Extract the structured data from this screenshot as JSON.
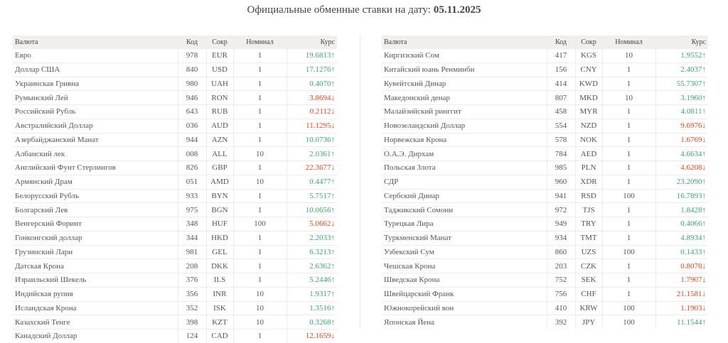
{
  "title": {
    "text": "Официальные обменные ставки на дату:",
    "date": "05.11.2025"
  },
  "tables": [
    {
      "header": [
        "Валюта",
        "Код",
        "Сокр",
        "Номинал",
        "Курс"
      ],
      "rows": [
        [
          "Евро",
          "978",
          "EUR",
          "1",
          "19.6813↑"
        ],
        [
          "Доллар США",
          "840",
          "USD",
          "1",
          "17.1276↑"
        ],
        [
          "Украинская Гривна",
          "980",
          "UAH",
          "1",
          "0.4070↑"
        ],
        [
          "Румынский Лей",
          "946",
          "RON",
          "1",
          "3.8694↓"
        ],
        [
          "Российский Рубль",
          "643",
          "RUB",
          "1",
          "0.2112↓"
        ],
        [
          "Австралийский Доллар",
          "036",
          "AUD",
          "1",
          "11.1295↓"
        ],
        [
          "Азербайджанский Манат",
          "944",
          "AZN",
          "1",
          "10.0736↑"
        ],
        [
          "Албанский лек",
          "008",
          "ALL",
          "10",
          "2.0361↑"
        ],
        [
          "Английский Фунт Стерлингов",
          "826",
          "GBP",
          "1",
          "22.3677↓"
        ],
        [
          "Армянский Драм",
          "051",
          "AMD",
          "10",
          "0.4477↑"
        ],
        [
          "Белорусский Рубль",
          "933",
          "BYN",
          "1",
          "5.7517↑"
        ],
        [
          "Болгарский Лев",
          "975",
          "BGN",
          "1",
          "10.0656↑"
        ],
        [
          "Венгерский Форинт",
          "348",
          "HUF",
          "100",
          "5.0662↓"
        ],
        [
          "Гонконгский доллар",
          "344",
          "HKD",
          "1",
          "2.2033↑"
        ],
        [
          "Грузинский Лари",
          "981",
          "GEL",
          "1",
          "6.3213↑"
        ],
        [
          "Датская Крона",
          "208",
          "DKK",
          "1",
          "2.6362↑"
        ],
        [
          "Израильский Шекель",
          "376",
          "ILS",
          "1",
          "5.2446↑"
        ],
        [
          "Индийская рупия",
          "356",
          "INR",
          "10",
          "1.9317↑"
        ],
        [
          "Исландская Крона",
          "352",
          "ISK",
          "10",
          "1.3516↑"
        ],
        [
          "Казахский Тенге",
          "398",
          "KZT",
          "10",
          "0.3268↑"
        ],
        [
          "Канадский Доллар",
          "124",
          "CAD",
          "1",
          "12.1659↓"
        ]
      ]
    },
    {
      "header": [
        "Валюта",
        "Код",
        "Сокр",
        "Номинал",
        "Курс"
      ],
      "rows": [
        [
          "Киргизский Сом",
          "417",
          "KGS",
          "10",
          "1.9552↑"
        ],
        [
          "Китайский юань Ренминби",
          "156",
          "CNY",
          "1",
          "2.4037↑"
        ],
        [
          "Кувейтский Динар",
          "414",
          "KWD",
          "1",
          "55.7307↑"
        ],
        [
          "Македонский денар",
          "807",
          "MKD",
          "10",
          "3.1960↑"
        ],
        [
          "Малайзийский ринггит",
          "458",
          "MYR",
          "1",
          "4.0811↑"
        ],
        [
          "Новозеландский Доллар",
          "554",
          "NZD",
          "1",
          "9.6976↓"
        ],
        [
          "Норвежская Крона",
          "578",
          "NOK",
          "1",
          "1.6769↓"
        ],
        [
          "О.А.Э. Дирхам",
          "784",
          "AED",
          "1",
          "4.6634↑"
        ],
        [
          "Польская Злота",
          "985",
          "PLN",
          "1",
          "4.6208↓"
        ],
        [
          "СДР",
          "960",
          "XDR",
          "1",
          "23.2090↑"
        ],
        [
          "Сербский Динар",
          "941",
          "RSD",
          "100",
          "16.7893↑"
        ],
        [
          "Таджикский Сомони",
          "972",
          "TJS",
          "1",
          "1.8428↑"
        ],
        [
          "Турецкая Лира",
          "949",
          "TRY",
          "1",
          "0.4066↑"
        ],
        [
          "Туркменский Манат",
          "934",
          "TMT",
          "1",
          "4.8934↑"
        ],
        [
          "Узбекский Сум",
          "860",
          "UZS",
          "100",
          "0.1433↑"
        ],
        [
          "Чешская Крона",
          "203",
          "CZK",
          "1",
          "0.8078↓"
        ],
        [
          "Шведская Крона",
          "752",
          "SEK",
          "1",
          "1.7907↓"
        ],
        [
          "Швейцарский Франк",
          "756",
          "CHF",
          "1",
          "21.1581↓"
        ],
        [
          "Южнокорейский вон",
          "410",
          "KRW",
          "100",
          "1.1903↓"
        ],
        [
          "Японская Йена",
          "392",
          "JPY",
          "100",
          "11.1544↑"
        ]
      ]
    }
  ]
}
